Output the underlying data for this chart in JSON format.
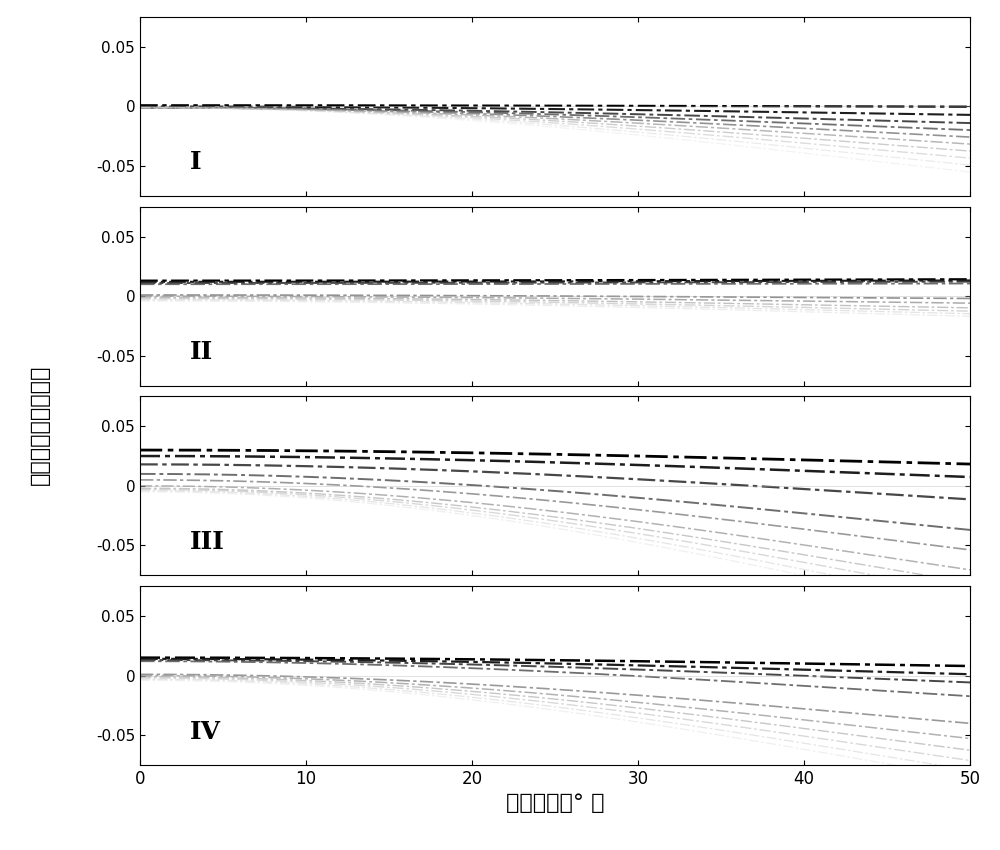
{
  "xlabel": "入射角度（° ）",
  "ylabel": "地震反射系数（＼）",
  "xlim": [
    0,
    50
  ],
  "ylim": [
    -0.075,
    0.075
  ],
  "yticks": [
    -0.05,
    0,
    0.05
  ],
  "ytick_labels": [
    "-0.05",
    "0",
    "0.05"
  ],
  "xticks": [
    0,
    10,
    20,
    30,
    40,
    50
  ],
  "panel_labels": [
    "I",
    "II",
    "III",
    "IV"
  ],
  "panels": [
    {
      "label": "I",
      "curves": [
        {
          "R0": 0.001,
          "G": -0.002,
          "color": "#000000",
          "lw": 1.6,
          "alpha": 1.0
        },
        {
          "R0": 0.0,
          "G": -0.012,
          "color": "#111111",
          "lw": 1.5,
          "alpha": 0.95
        },
        {
          "R0": -0.001,
          "G": -0.022,
          "color": "#333333",
          "lw": 1.4,
          "alpha": 0.9
        },
        {
          "R0": -0.001,
          "G": -0.032,
          "color": "#555555",
          "lw": 1.3,
          "alpha": 0.85
        },
        {
          "R0": -0.001,
          "G": -0.042,
          "color": "#777777",
          "lw": 1.2,
          "alpha": 0.8
        },
        {
          "R0": -0.001,
          "G": -0.052,
          "color": "#999999",
          "lw": 1.1,
          "alpha": 0.7
        },
        {
          "R0": -0.001,
          "G": -0.062,
          "color": "#aaaaaa",
          "lw": 1.0,
          "alpha": 0.6
        },
        {
          "R0": -0.001,
          "G": -0.072,
          "color": "#bbbbbb",
          "lw": 1.0,
          "alpha": 0.5
        },
        {
          "R0": -0.001,
          "G": -0.082,
          "color": "#cccccc",
          "lw": 0.9,
          "alpha": 0.4
        },
        {
          "R0": -0.001,
          "G": -0.092,
          "color": "#dddddd",
          "lw": 0.9,
          "alpha": 0.35
        }
      ]
    },
    {
      "label": "II",
      "curves": [
        {
          "R0": 0.013,
          "G": 0.002,
          "color": "#000000",
          "lw": 1.6,
          "alpha": 1.0
        },
        {
          "R0": 0.012,
          "G": 0.002,
          "color": "#111111",
          "lw": 1.5,
          "alpha": 0.95
        },
        {
          "R0": 0.011,
          "G": 0.002,
          "color": "#333333",
          "lw": 1.4,
          "alpha": 0.9
        },
        {
          "R0": 0.01,
          "G": 0.001,
          "color": "#555555",
          "lw": 1.3,
          "alpha": 0.85
        },
        {
          "R0": 0.001,
          "G": -0.005,
          "color": "#777777",
          "lw": 1.2,
          "alpha": 0.8
        },
        {
          "R0": 0.0,
          "G": -0.01,
          "color": "#888888",
          "lw": 1.1,
          "alpha": 0.7
        },
        {
          "R0": -0.001,
          "G": -0.015,
          "color": "#999999",
          "lw": 1.0,
          "alpha": 0.6
        },
        {
          "R0": -0.002,
          "G": -0.018,
          "color": "#aaaaaa",
          "lw": 1.0,
          "alpha": 0.5
        },
        {
          "R0": -0.003,
          "G": -0.02,
          "color": "#bbbbbb",
          "lw": 0.9,
          "alpha": 0.4
        },
        {
          "R0": -0.004,
          "G": -0.022,
          "color": "#cccccc",
          "lw": 0.9,
          "alpha": 0.35
        }
      ]
    },
    {
      "label": "III",
      "curves": [
        {
          "R0": 0.03,
          "G": -0.02,
          "color": "#000000",
          "lw": 2.0,
          "alpha": 1.0
        },
        {
          "R0": 0.025,
          "G": -0.03,
          "color": "#111111",
          "lw": 1.8,
          "alpha": 0.95
        },
        {
          "R0": 0.018,
          "G": -0.05,
          "color": "#333333",
          "lw": 1.6,
          "alpha": 0.9
        },
        {
          "R0": 0.01,
          "G": -0.08,
          "color": "#555555",
          "lw": 1.4,
          "alpha": 0.85
        },
        {
          "R0": 0.005,
          "G": -0.1,
          "color": "#777777",
          "lw": 1.2,
          "alpha": 0.75
        },
        {
          "R0": 0.0,
          "G": -0.12,
          "color": "#888888",
          "lw": 1.1,
          "alpha": 0.65
        },
        {
          "R0": -0.002,
          "G": -0.135,
          "color": "#999999",
          "lw": 1.0,
          "alpha": 0.55
        },
        {
          "R0": -0.003,
          "G": -0.148,
          "color": "#aaaaaa",
          "lw": 1.0,
          "alpha": 0.45
        },
        {
          "R0": -0.004,
          "G": -0.16,
          "color": "#bbbbbb",
          "lw": 0.9,
          "alpha": 0.38
        },
        {
          "R0": -0.005,
          "G": -0.17,
          "color": "#cccccc",
          "lw": 0.9,
          "alpha": 0.3
        }
      ]
    },
    {
      "label": "IV",
      "curves": [
        {
          "R0": 0.015,
          "G": -0.012,
          "color": "#000000",
          "lw": 1.8,
          "alpha": 1.0
        },
        {
          "R0": 0.014,
          "G": -0.022,
          "color": "#111111",
          "lw": 1.6,
          "alpha": 0.95
        },
        {
          "R0": 0.013,
          "G": -0.032,
          "color": "#333333",
          "lw": 1.4,
          "alpha": 0.9
        },
        {
          "R0": 0.012,
          "G": -0.05,
          "color": "#555555",
          "lw": 1.3,
          "alpha": 0.85
        },
        {
          "R0": 0.001,
          "G": -0.07,
          "color": "#777777",
          "lw": 1.2,
          "alpha": 0.75
        },
        {
          "R0": 0.0,
          "G": -0.09,
          "color": "#888888",
          "lw": 1.1,
          "alpha": 0.65
        },
        {
          "R0": -0.001,
          "G": -0.105,
          "color": "#999999",
          "lw": 1.0,
          "alpha": 0.55
        },
        {
          "R0": -0.002,
          "G": -0.118,
          "color": "#aaaaaa",
          "lw": 1.0,
          "alpha": 0.45
        },
        {
          "R0": -0.003,
          "G": -0.13,
          "color": "#bbbbbb",
          "lw": 0.9,
          "alpha": 0.38
        },
        {
          "R0": -0.004,
          "G": -0.14,
          "color": "#cccccc",
          "lw": 0.9,
          "alpha": 0.3
        }
      ]
    }
  ]
}
